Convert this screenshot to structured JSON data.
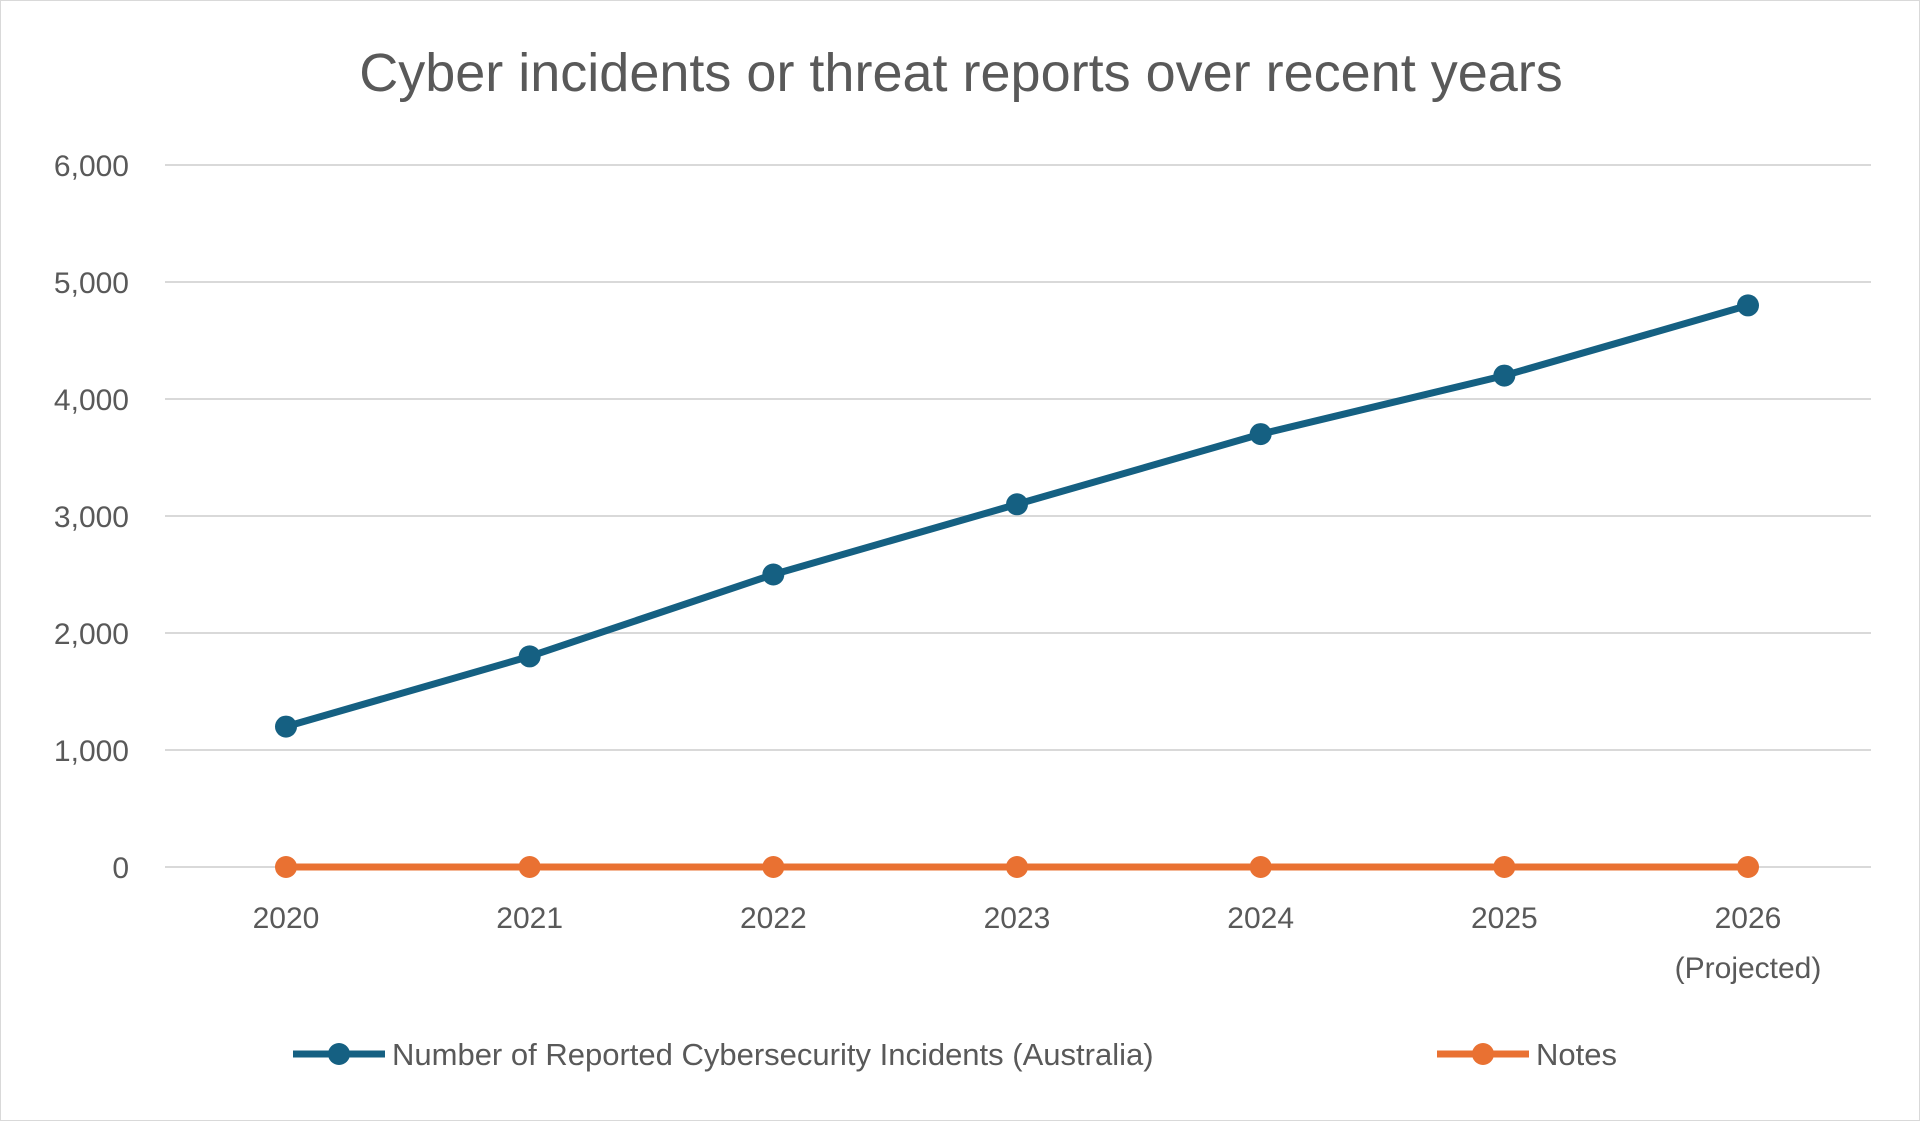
{
  "chart_data": {
    "type": "line",
    "title": "Cyber incidents or threat reports over recent years",
    "categories": [
      [
        "2020"
      ],
      [
        "2021"
      ],
      [
        "2022"
      ],
      [
        "2023"
      ],
      [
        "2024"
      ],
      [
        "2025"
      ],
      [
        "2026",
        "(Projected)"
      ]
    ],
    "ylim": [
      0,
      6000
    ],
    "yticks": [
      0,
      1000,
      2000,
      3000,
      4000,
      5000,
      6000
    ],
    "ytick_labels": [
      "0",
      "1,000",
      "2,000",
      "3,000",
      "4,000",
      "5,000",
      "6,000"
    ],
    "grid": true,
    "legend_placement": "bottom",
    "series": [
      {
        "name": "Number of Reported Cybersecurity Incidents (Australia)",
        "color": "#156082",
        "values": [
          1200,
          1800,
          2500,
          3100,
          3700,
          4200,
          4800
        ]
      },
      {
        "name": "Notes",
        "color": "#e97132",
        "values": [
          0,
          0,
          0,
          0,
          0,
          0,
          0
        ]
      }
    ]
  }
}
